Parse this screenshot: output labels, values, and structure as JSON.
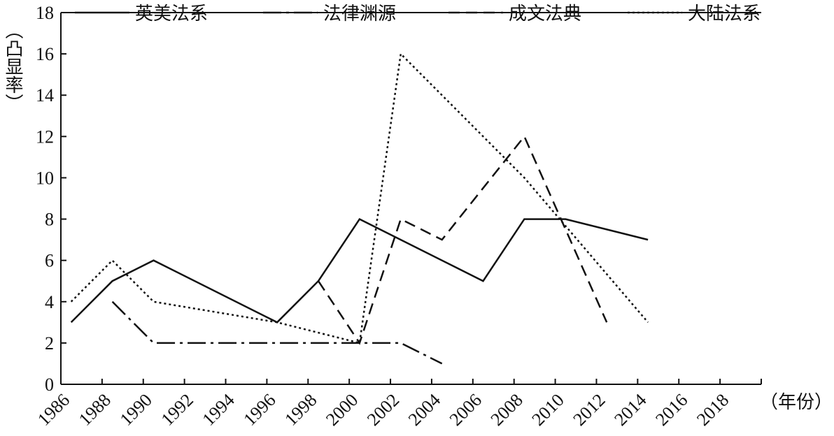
{
  "chart_data": {
    "type": "line",
    "ylabel": "（凸显率）",
    "xlabel": "（年份）",
    "ylim": [
      0,
      18
    ],
    "yticks": [
      0,
      2,
      4,
      6,
      8,
      10,
      12,
      14,
      16,
      18
    ],
    "xticks": [
      "1986",
      "1988",
      "1990",
      "1992",
      "1994",
      "1996",
      "1998",
      "2000",
      "2002",
      "2004",
      "2006",
      "2008",
      "2010",
      "2012",
      "2014",
      "2016",
      "2018"
    ],
    "legend_position": "top",
    "grid": false,
    "series": [
      {
        "name": "英美法系",
        "dash": "solid",
        "x": [
          1986.5,
          1988.5,
          1990.5,
          1996.5,
          1998.5,
          2000.5,
          2006.5,
          2008.5,
          2010.5,
          2014.5
        ],
        "y": [
          3,
          5,
          6,
          3,
          5,
          8,
          5,
          8,
          8,
          7
        ]
      },
      {
        "name": "法律渊源",
        "dash": "dashdot",
        "x": [
          1988.5,
          1990.5,
          2002.5,
          2004.5
        ],
        "y": [
          4,
          2,
          2,
          1
        ]
      },
      {
        "name": "成文法典",
        "dash": "dashed",
        "x": [
          1998.5,
          2000.5,
          2002.5,
          2004.5,
          2006.5,
          2008.5,
          2010.5,
          2012.5
        ],
        "y": [
          5,
          2,
          8,
          7,
          9.5,
          12,
          7.5,
          3
        ]
      },
      {
        "name": "大陆法系",
        "dash": "dotted",
        "x": [
          1986.5,
          1988.5,
          1990.5,
          1996.5,
          2000.5,
          2002.5,
          2008.5,
          2014.5
        ],
        "y": [
          4,
          6,
          4,
          3,
          2,
          16,
          10,
          3
        ]
      }
    ]
  }
}
